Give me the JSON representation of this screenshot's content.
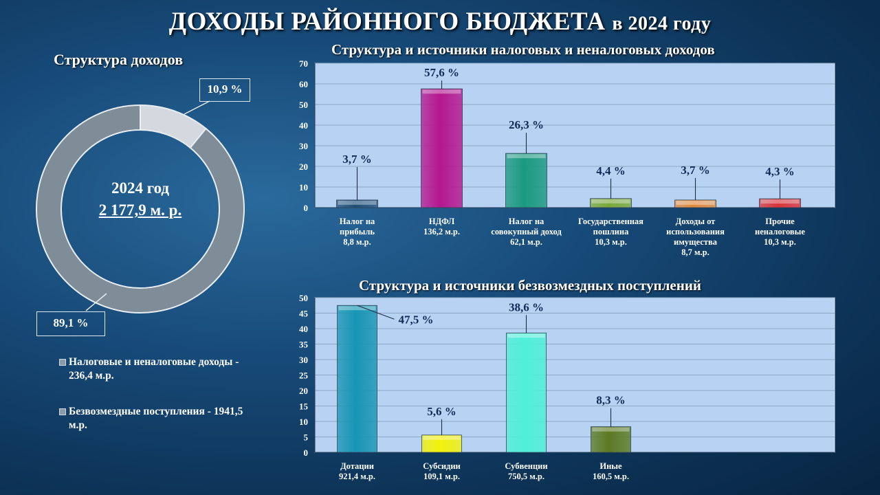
{
  "title": {
    "main": "ДОХОДЫ РАЙОННОГО БЮДЖЕТА",
    "year_part": "в 2024 году"
  },
  "donut": {
    "section_title": "Структура доходов",
    "center_year": "2024 год",
    "center_amount": "2 177,9 м. р.",
    "callout_small": "10,9 %",
    "callout_large": "89,1 %",
    "legend": [
      "Налоговые и неналоговые доходы - 236,4 м.р.",
      "Безвозмездные поступления - 1941,5 м.р."
    ],
    "colors": {
      "small": "#d3d9de",
      "large": "#7f8d99"
    }
  },
  "chart_data": [
    {
      "type": "pie",
      "title": "Структура доходов",
      "categories": [
        "Налоговые и неналоговые доходы - 236,4 м.р.",
        "Безвозмездные поступления - 1941,5 м.р."
      ],
      "values": [
        10.9,
        89.1
      ],
      "data_labels": [
        "10,9 %",
        "89,1 %"
      ]
    },
    {
      "type": "bar",
      "title": "Структура и источники налоговых и неналоговых доходов",
      "categories": [
        [
          "Налог на",
          "прибыль",
          "8,8 м.р."
        ],
        [
          "НДФЛ",
          "136,2 м.р."
        ],
        [
          "Налог на",
          "совокупный доход",
          "62,1 м.р."
        ],
        [
          "Государственная",
          "пошлина",
          "10,3 м.р."
        ],
        [
          "Доходы от",
          "использования",
          "имущества",
          "8,7 м.р."
        ],
        [
          "Прочие",
          "неналоговые",
          "10,3 м.р."
        ]
      ],
      "values": [
        3.7,
        57.6,
        26.3,
        4.4,
        3.7,
        4.3
      ],
      "data_labels": [
        "3,7 %",
        "57,6 %",
        "26,3 %",
        "4,4 %",
        "3,7 %",
        "4,3 %"
      ],
      "colors": [
        "#1f4e79",
        "#b5178f",
        "#1a9a80",
        "#7aa83a",
        "#e08a3c",
        "#d9343a"
      ],
      "ylim": [
        0,
        70
      ],
      "yticks": [
        0,
        10,
        20,
        30,
        40,
        50,
        60,
        70
      ],
      "grid": true
    },
    {
      "type": "bar",
      "title": "Структура и источники безвозмездных поступлений",
      "categories": [
        [
          "Дотации",
          "921,4 м.р."
        ],
        [
          "Субсидии",
          "109,1 м.р."
        ],
        [
          "Субвенции",
          "750,5 м.р."
        ],
        [
          "Иные",
          "160,5 м.р."
        ]
      ],
      "values": [
        47.5,
        5.6,
        38.6,
        8.3
      ],
      "data_labels": [
        "47,5 %",
        "5,6 %",
        "38,6 %",
        "8,3 %"
      ],
      "colors": [
        "#1895b3",
        "#f2f20a",
        "#4ef0d8",
        "#5c7a22"
      ],
      "ylim": [
        0,
        50
      ],
      "yticks": [
        0,
        5,
        10,
        15,
        20,
        25,
        30,
        35,
        40,
        45,
        50
      ],
      "grid": true
    }
  ]
}
